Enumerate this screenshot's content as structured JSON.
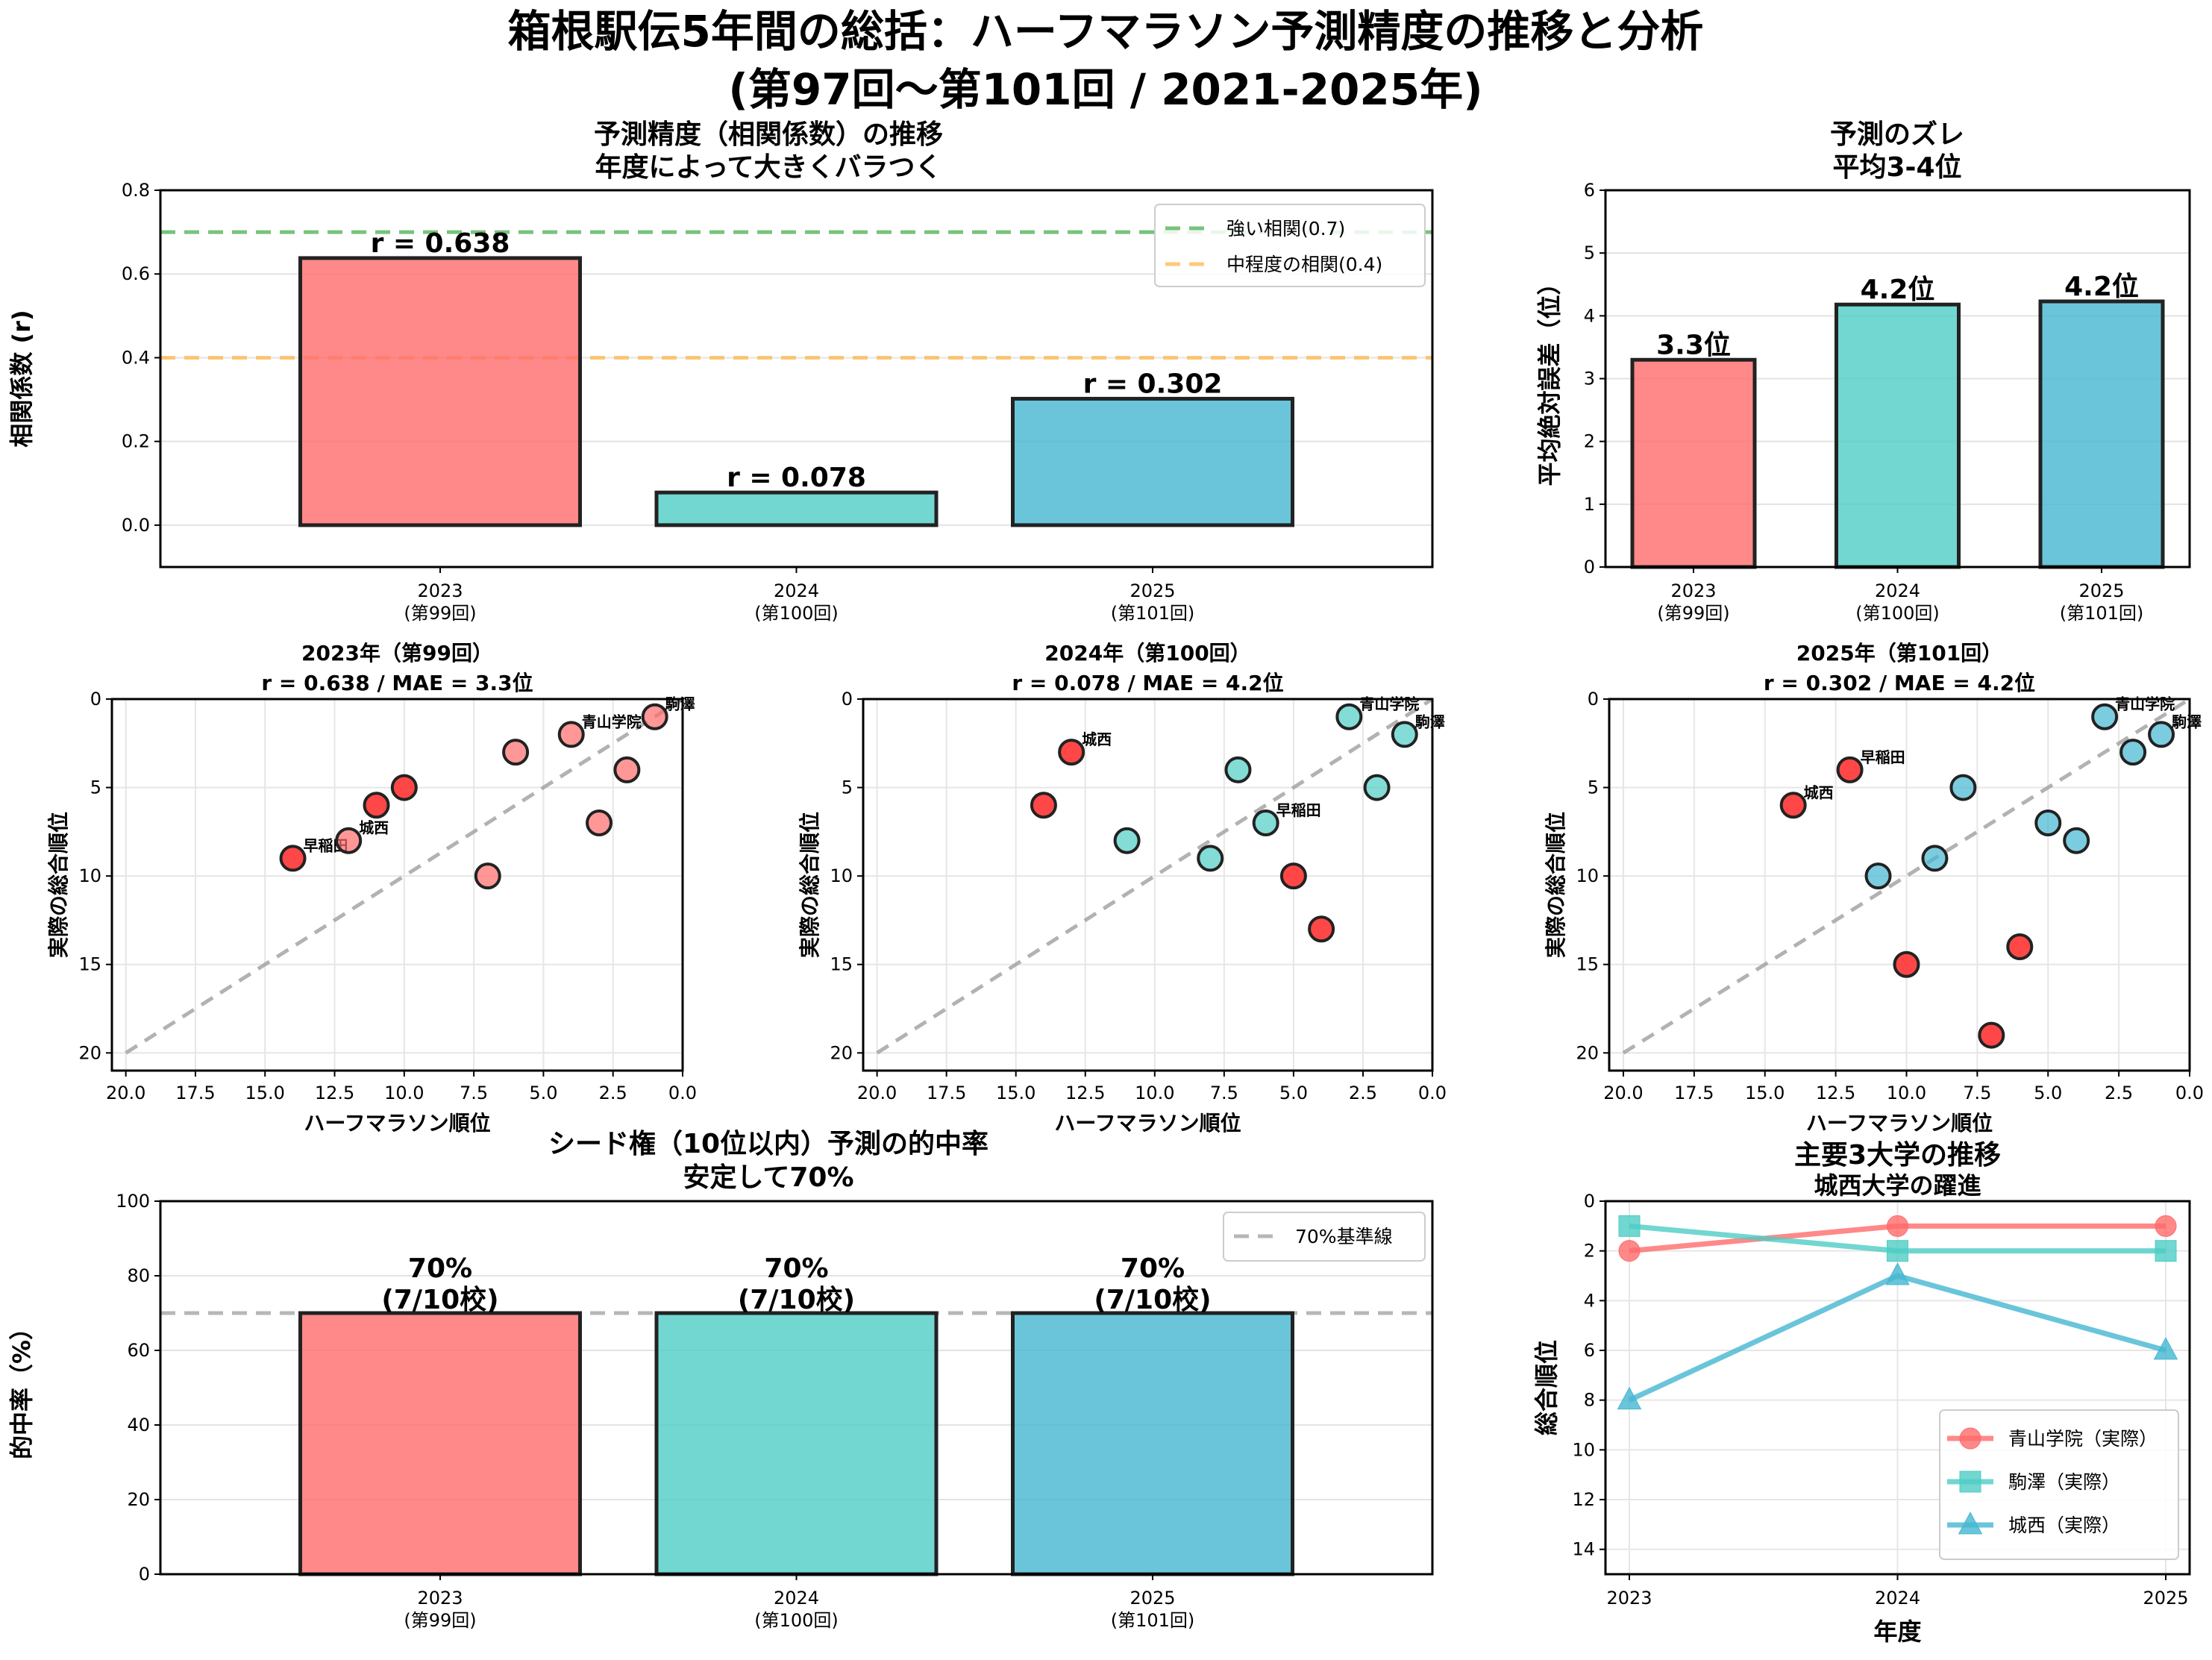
{
  "figure": {
    "title_line1": "箱根駅伝5年間の総括：ハーフマラソン予測精度の推移と分析",
    "title_line2": "(第97回〜第101回 / 2021-2025年)"
  },
  "colors": {
    "y2023": "#FF6B6B",
    "y2024": "#4ECDC4",
    "y2025": "#45B7D1",
    "highlight_red": "#FF3333",
    "strong_line": "#4CAF50",
    "medium_line": "#FFB74D",
    "grey_line": "#A0A0A0",
    "edge": "#222222"
  },
  "chart_data": [
    {
      "id": "correlation",
      "type": "bar",
      "title": "予測精度（相関係数）の推移",
      "subtitle": "年度によって大きくバラつく",
      "xlabel": "",
      "ylabel": "相関係数 (r)",
      "categories": [
        "2023\n(第99回)",
        "2024\n(第100回)",
        "2025\n(第101回)"
      ],
      "category_years": [
        "2023",
        "2024",
        "2025"
      ],
      "category_rounds": [
        "(第99回)",
        "(第100回)",
        "(第101回)"
      ],
      "values": [
        0.638,
        0.078,
        0.302
      ],
      "value_labels": [
        "r = 0.638",
        "r = 0.078",
        "r = 0.302"
      ],
      "ylim": [
        -0.1,
        0.8
      ],
      "yticks": [
        "0.0",
        "0.2",
        "0.4",
        "0.6",
        "0.8"
      ],
      "grid": "y",
      "reference_lines": [
        {
          "value": 0.7,
          "label": "強い相関(0.7)",
          "color": "#4CAF50"
        },
        {
          "value": 0.4,
          "label": "中程度の相関(0.4)",
          "color": "#FFB74D"
        }
      ],
      "legend": "top-right"
    },
    {
      "id": "mae",
      "type": "bar",
      "title": "予測のズレ",
      "subtitle": "平均3-4位",
      "xlabel": "",
      "ylabel": "平均絶対誤差（位）",
      "category_years": [
        "2023",
        "2024",
        "2025"
      ],
      "category_rounds": [
        "(第99回)",
        "(第100回)",
        "(第101回)"
      ],
      "values": [
        3.3,
        4.18,
        4.23
      ],
      "value_labels": [
        "3.3位",
        "4.2位",
        "4.2位"
      ],
      "ylim": [
        0,
        6
      ],
      "yticks": [
        "0",
        "1",
        "2",
        "3",
        "4",
        "5",
        "6"
      ],
      "grid": "y"
    },
    {
      "id": "scatter2023",
      "type": "scatter",
      "title": "2023年（第99回）",
      "subtitle": "r = 0.638 / MAE = 3.3位",
      "xlabel": "ハーフマラソン順位",
      "ylabel": "実際の総合順位",
      "xlim": [
        20.5,
        0
      ],
      "ylim": [
        21,
        0
      ],
      "xticks": [
        "20.0",
        "17.5",
        "15.0",
        "12.5",
        "10.0",
        "7.5",
        "5.0",
        "2.5",
        "0.0"
      ],
      "yticks": [
        "0",
        "5",
        "10",
        "15",
        "20"
      ],
      "base_color": "#FF6B6B",
      "points": [
        {
          "x": 14,
          "y": 9,
          "label": "早稲田",
          "miss": true
        },
        {
          "x": 12,
          "y": 8,
          "label": "城西",
          "miss": false
        },
        {
          "x": 11,
          "y": 6,
          "label": "",
          "miss": true
        },
        {
          "x": 10,
          "y": 5,
          "label": "",
          "miss": true
        },
        {
          "x": 7,
          "y": 10,
          "label": "",
          "miss": false
        },
        {
          "x": 6,
          "y": 3,
          "label": "",
          "miss": false
        },
        {
          "x": 4,
          "y": 2,
          "label": "青山学院",
          "miss": false
        },
        {
          "x": 3,
          "y": 7,
          "label": "",
          "miss": false
        },
        {
          "x": 2,
          "y": 4,
          "label": "",
          "miss": false
        },
        {
          "x": 1,
          "y": 1,
          "label": "駒澤",
          "miss": false
        }
      ]
    },
    {
      "id": "scatter2024",
      "type": "scatter",
      "title": "2024年（第100回）",
      "subtitle": "r = 0.078 / MAE = 4.2位",
      "xlabel": "ハーフマラソン順位",
      "ylabel": "実際の総合順位",
      "xlim": [
        20.5,
        0
      ],
      "ylim": [
        21,
        0
      ],
      "xticks": [
        "20.0",
        "17.5",
        "15.0",
        "12.5",
        "10.0",
        "7.5",
        "5.0",
        "2.5",
        "0.0"
      ],
      "yticks": [
        "0",
        "5",
        "10",
        "15",
        "20"
      ],
      "base_color": "#4ECDC4",
      "points": [
        {
          "x": 14,
          "y": 6,
          "label": "",
          "miss": true
        },
        {
          "x": 13,
          "y": 3,
          "label": "城西",
          "miss": true
        },
        {
          "x": 11,
          "y": 8,
          "label": "",
          "miss": false
        },
        {
          "x": 8,
          "y": 9,
          "label": "",
          "miss": false
        },
        {
          "x": 7,
          "y": 4,
          "label": "",
          "miss": false
        },
        {
          "x": 6,
          "y": 7,
          "label": "早稲田",
          "miss": false
        },
        {
          "x": 5,
          "y": 10,
          "label": "",
          "miss": true
        },
        {
          "x": 4,
          "y": 13,
          "label": "",
          "miss": true
        },
        {
          "x": 3,
          "y": 1,
          "label": "青山学院",
          "miss": false
        },
        {
          "x": 2,
          "y": 5,
          "label": "",
          "miss": false
        },
        {
          "x": 1,
          "y": 2,
          "label": "駒澤",
          "miss": false
        }
      ]
    },
    {
      "id": "scatter2025",
      "type": "scatter",
      "title": "2025年（第101回）",
      "subtitle": "r = 0.302 / MAE = 4.2位",
      "xlabel": "ハーフマラソン順位",
      "ylabel": "実際の総合順位",
      "xlim": [
        20.5,
        0
      ],
      "ylim": [
        21,
        0
      ],
      "xticks": [
        "20.0",
        "17.5",
        "15.0",
        "12.5",
        "10.0",
        "7.5",
        "5.0",
        "2.5",
        "0.0"
      ],
      "yticks": [
        "0",
        "5",
        "10",
        "15",
        "20"
      ],
      "base_color": "#45B7D1",
      "points": [
        {
          "x": 14,
          "y": 6,
          "label": "城西",
          "miss": true
        },
        {
          "x": 12,
          "y": 4,
          "label": "早稲田",
          "miss": true
        },
        {
          "x": 11,
          "y": 10,
          "label": "",
          "miss": false
        },
        {
          "x": 10,
          "y": 15,
          "label": "",
          "miss": true
        },
        {
          "x": 9,
          "y": 9,
          "label": "",
          "miss": false
        },
        {
          "x": 8,
          "y": 5,
          "label": "",
          "miss": false
        },
        {
          "x": 7,
          "y": 19,
          "label": "",
          "miss": true
        },
        {
          "x": 6,
          "y": 14,
          "label": "",
          "miss": true
        },
        {
          "x": 5,
          "y": 7,
          "label": "",
          "miss": false
        },
        {
          "x": 4,
          "y": 8,
          "label": "",
          "miss": false
        },
        {
          "x": 3,
          "y": 1,
          "label": "青山学院",
          "miss": false
        },
        {
          "x": 2,
          "y": 3,
          "label": "",
          "miss": false
        },
        {
          "x": 1,
          "y": 2,
          "label": "駒澤",
          "miss": false
        }
      ]
    },
    {
      "id": "seed_accuracy",
      "type": "bar",
      "title": "シード権（10位以内）予測の的中率",
      "subtitle": "安定して70%",
      "xlabel": "",
      "ylabel": "的中率（%）",
      "category_years": [
        "2023",
        "2024",
        "2025"
      ],
      "category_rounds": [
        "(第99回)",
        "(第100回)",
        "(第101回)"
      ],
      "values": [
        70,
        70,
        70
      ],
      "value_labels_line1": [
        "70%",
        "70%",
        "70%"
      ],
      "value_labels_line2": [
        "(7/10校)",
        "(7/10校)",
        "(7/10校)"
      ],
      "ylim": [
        0,
        100
      ],
      "yticks": [
        "0",
        "20",
        "40",
        "60",
        "80",
        "100"
      ],
      "grid": "y",
      "reference_lines": [
        {
          "value": 70,
          "label": "70%基準線",
          "color": "#A0A0A0"
        }
      ],
      "legend": "top-right"
    },
    {
      "id": "top3_trend",
      "type": "line",
      "title": "主要3大学の推移",
      "subtitle": "城西大学の躍進",
      "xlabel": "年度",
      "ylabel": "総合順位",
      "x": [
        "2023",
        "2024",
        "2025"
      ],
      "ylim": [
        15,
        0
      ],
      "yticks": [
        "0",
        "2",
        "4",
        "6",
        "8",
        "10",
        "12",
        "14"
      ],
      "grid": "both",
      "legend": "bottom-right",
      "series": [
        {
          "name": "青山学院（実際）",
          "values": [
            2,
            1,
            1
          ],
          "color": "#FF6B6B",
          "marker": "circle"
        },
        {
          "name": "駒澤（実際）",
          "values": [
            1,
            2,
            2
          ],
          "color": "#4ECDC4",
          "marker": "square"
        },
        {
          "name": "城西（実際）",
          "values": [
            8,
            3,
            6
          ],
          "color": "#45B7D1",
          "marker": "triangle"
        }
      ]
    }
  ]
}
